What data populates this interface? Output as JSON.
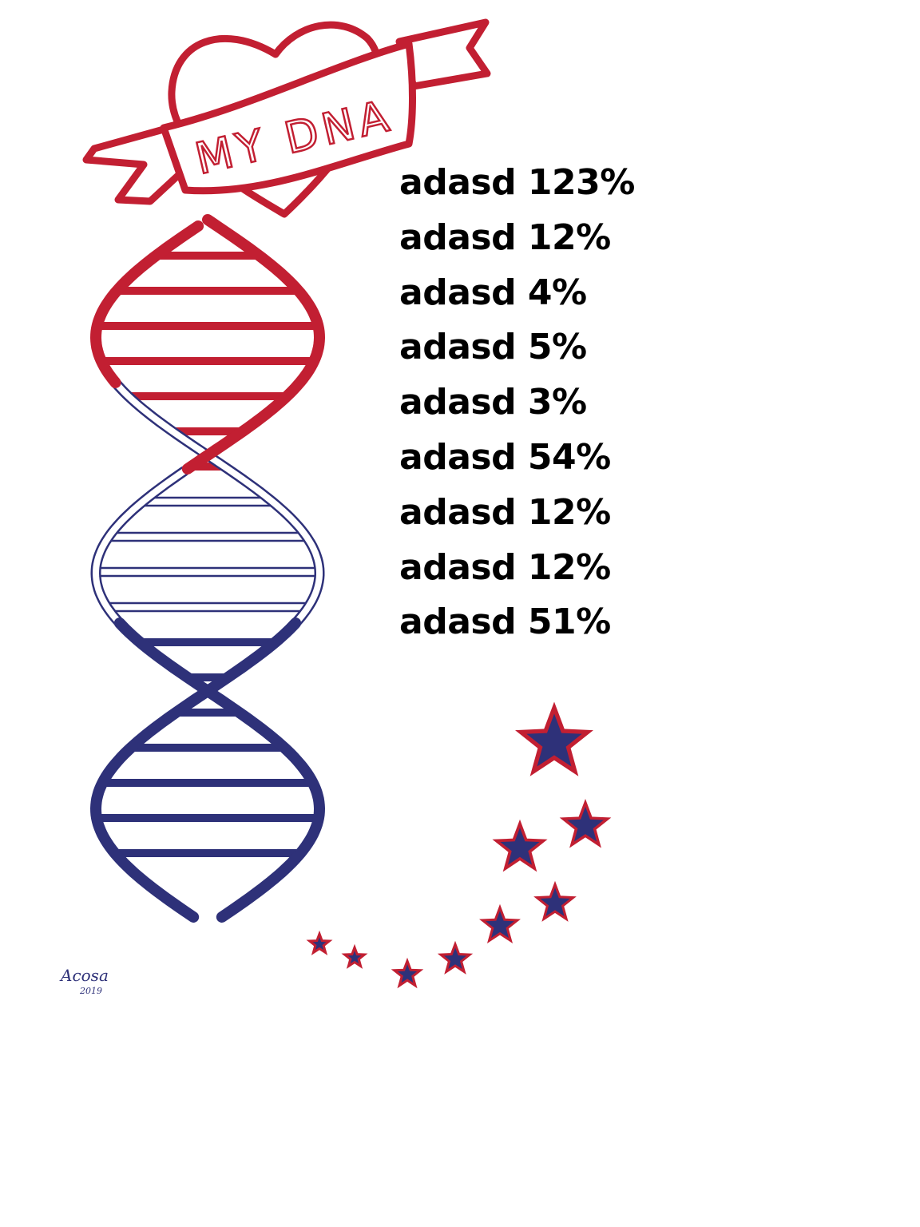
{
  "banner": {
    "title": "MY DNA"
  },
  "items": [
    {
      "label": "adasd",
      "percent": "123%"
    },
    {
      "label": "adasd",
      "percent": "12%"
    },
    {
      "label": "adasd",
      "percent": "4%"
    },
    {
      "label": "adasd",
      "percent": "5%"
    },
    {
      "label": "adasd",
      "percent": "3%"
    },
    {
      "label": "adasd",
      "percent": "54%"
    },
    {
      "label": "adasd",
      "percent": "12%"
    },
    {
      "label": "adasd",
      "percent": "12%"
    },
    {
      "label": "adasd",
      "percent": "51%"
    }
  ],
  "signature": {
    "name": "Acosa",
    "year": "2019"
  },
  "colors": {
    "red": "#c21f32",
    "navy": "#2e3179",
    "text": "#000000"
  },
  "icons": [
    "heart-icon",
    "banner-ribbon",
    "dna-helix",
    "star-icon"
  ]
}
